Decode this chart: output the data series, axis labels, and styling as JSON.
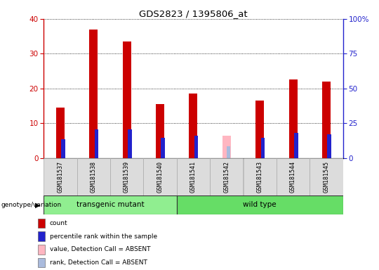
{
  "title": "GDS2823 / 1395806_at",
  "samples": [
    "GSM181537",
    "GSM181538",
    "GSM181539",
    "GSM181540",
    "GSM181541",
    "GSM181542",
    "GSM181543",
    "GSM181544",
    "GSM181545"
  ],
  "count_values": [
    14.5,
    37.0,
    33.5,
    15.5,
    18.5,
    0.0,
    16.5,
    22.5,
    22.0
  ],
  "rank_values": [
    13.5,
    20.5,
    20.5,
    14.5,
    16.0,
    0.0,
    14.5,
    18.0,
    17.0
  ],
  "absent_value": [
    0,
    0,
    0,
    0,
    0,
    6.5,
    0,
    0,
    0
  ],
  "absent_rank": [
    0,
    0,
    0,
    0,
    0,
    8.5,
    0,
    0,
    0
  ],
  "is_absent": [
    false,
    false,
    false,
    false,
    false,
    true,
    false,
    false,
    false
  ],
  "groups": [
    {
      "label": "transgenic mutant",
      "start": 0,
      "end": 3,
      "color": "#90EE90"
    },
    {
      "label": "wild type",
      "start": 4,
      "end": 8,
      "color": "#66DD66"
    }
  ],
  "group_label": "genotype/variation",
  "ylim_left": [
    0,
    40
  ],
  "ylim_right": [
    0,
    100
  ],
  "yticks_left": [
    0,
    10,
    20,
    30,
    40
  ],
  "yticks_right": [
    0,
    25,
    50,
    75,
    100
  ],
  "ytick_labels_right": [
    "0",
    "25",
    "50",
    "75",
    "100%"
  ],
  "count_bar_width": 0.25,
  "rank_bar_width": 0.12,
  "count_color": "#CC0000",
  "rank_color": "#2222CC",
  "absent_count_color": "#FFB6C1",
  "absent_rank_color": "#AABBDD",
  "plot_bg": "#FFFFFF",
  "legend_items": [
    {
      "color": "#CC0000",
      "label": "count"
    },
    {
      "color": "#2222CC",
      "label": "percentile rank within the sample"
    },
    {
      "color": "#FFB6C1",
      "label": "value, Detection Call = ABSENT"
    },
    {
      "color": "#AABBDD",
      "label": "rank, Detection Call = ABSENT"
    }
  ]
}
